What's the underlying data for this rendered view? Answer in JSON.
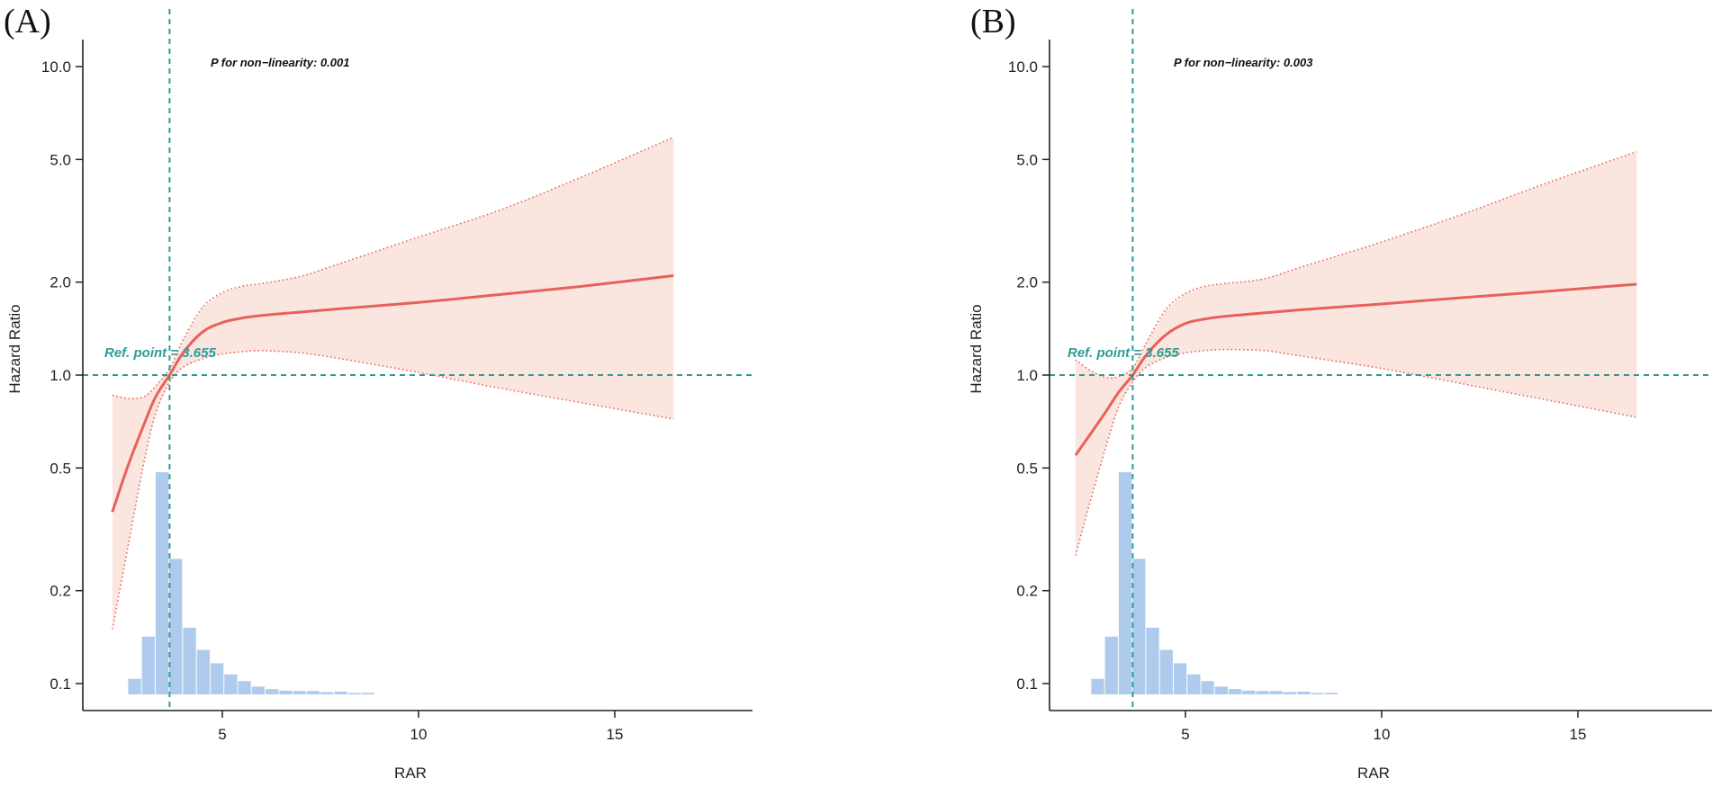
{
  "colors": {
    "curve": "#e8605c",
    "ci_fill": "#fbe3dc",
    "ci_border": "#e8605c",
    "histogram": "#aecbee",
    "reference": "#2e9c95",
    "axis": "#222222"
  },
  "chart_data": [
    {
      "type": "line",
      "panel_label": "(A)",
      "xlabel": "RAR",
      "ylabel": "Hazard Ratio",
      "y_scale": "log",
      "xlim": [
        2.0,
        18.0
      ],
      "ylim": [
        0.08,
        13.0
      ],
      "x_ticks": [
        {
          "value": 5,
          "label": "5"
        },
        {
          "value": 10,
          "label": "10"
        },
        {
          "value": 15,
          "label": "15"
        }
      ],
      "y_ticks": [
        {
          "value": 0.1,
          "label": "0.1"
        },
        {
          "value": 0.2,
          "label": "0.2"
        },
        {
          "value": 0.5,
          "label": "0.5"
        },
        {
          "value": 1.0,
          "label": "1.0"
        },
        {
          "value": 2.0,
          "label": "2.0"
        },
        {
          "value": 5.0,
          "label": "5.0"
        },
        {
          "value": 10.0,
          "label": "10.0"
        }
      ],
      "annotation": "P for non−linearity: 0.001",
      "reference_point": {
        "x": 3.655,
        "hr": 1.0,
        "label": "Ref. point = 3.655"
      },
      "series": [
        {
          "name": "Hazard ratio",
          "x": [
            2.2,
            2.6,
            3.0,
            3.3,
            3.655,
            4.0,
            4.5,
            5.0,
            5.5,
            6.0,
            7.0,
            8.0,
            10.0,
            12.0,
            14.0,
            16.5
          ],
          "values": [
            0.36,
            0.51,
            0.69,
            0.85,
            1.0,
            1.18,
            1.38,
            1.48,
            1.53,
            1.56,
            1.6,
            1.64,
            1.72,
            1.82,
            1.93,
            2.1
          ]
        },
        {
          "name": "95% CI upper",
          "x": [
            2.2,
            2.6,
            3.0,
            3.3,
            3.655,
            4.0,
            4.5,
            5.0,
            5.5,
            6.0,
            7.0,
            8.0,
            10.0,
            12.0,
            14.0,
            16.5
          ],
          "values": [
            0.86,
            0.84,
            0.85,
            0.92,
            1.05,
            1.3,
            1.66,
            1.85,
            1.94,
            1.98,
            2.09,
            2.3,
            2.8,
            3.4,
            4.3,
            5.9
          ]
        },
        {
          "name": "95% CI lower",
          "x": [
            2.2,
            2.6,
            3.0,
            3.3,
            3.655,
            4.0,
            4.5,
            5.0,
            5.5,
            6.0,
            7.0,
            8.0,
            10.0,
            12.0,
            14.0,
            16.5
          ],
          "values": [
            0.15,
            0.28,
            0.52,
            0.75,
            0.95,
            1.06,
            1.13,
            1.17,
            1.19,
            1.2,
            1.18,
            1.13,
            1.02,
            0.91,
            0.82,
            0.72
          ]
        }
      ],
      "histogram": {
        "name": "RAR distribution",
        "bin_width": 0.35,
        "bin_starts": [
          2.6,
          2.95,
          3.3,
          3.65,
          4.0,
          4.35,
          4.7,
          5.05,
          5.4,
          5.75,
          6.1,
          6.45,
          6.8,
          7.15,
          7.5,
          7.85,
          8.2,
          8.55
        ],
        "relative_heights": [
          0.07,
          0.26,
          1.0,
          0.61,
          0.3,
          0.2,
          0.14,
          0.09,
          0.06,
          0.035,
          0.024,
          0.017,
          0.015,
          0.015,
          0.01,
          0.012,
          0.005,
          0.007
        ]
      }
    },
    {
      "type": "line",
      "panel_label": "(B)",
      "xlabel": "RAR",
      "ylabel": "Hazard Ratio",
      "y_scale": "log",
      "xlim": [
        2.0,
        18.0
      ],
      "ylim": [
        0.08,
        13.0
      ],
      "x_ticks": [
        {
          "value": 5,
          "label": "5"
        },
        {
          "value": 10,
          "label": "10"
        },
        {
          "value": 15,
          "label": "15"
        }
      ],
      "y_ticks": [
        {
          "value": 0.1,
          "label": "0.1"
        },
        {
          "value": 0.2,
          "label": "0.2"
        },
        {
          "value": 0.5,
          "label": "0.5"
        },
        {
          "value": 1.0,
          "label": "1.0"
        },
        {
          "value": 2.0,
          "label": "2.0"
        },
        {
          "value": 5.0,
          "label": "5.0"
        },
        {
          "value": 10.0,
          "label": "10.0"
        }
      ],
      "annotation": "P for non−linearity: 0.003",
      "reference_point": {
        "x": 3.655,
        "hr": 1.0,
        "label": "Ref. point = 3.655"
      },
      "series": [
        {
          "name": "Hazard ratio",
          "x": [
            2.2,
            2.6,
            3.0,
            3.3,
            3.655,
            4.0,
            4.5,
            5.0,
            5.5,
            6.0,
            7.0,
            8.0,
            10.0,
            12.0,
            14.0,
            16.5
          ],
          "values": [
            0.55,
            0.65,
            0.77,
            0.88,
            1.0,
            1.16,
            1.35,
            1.47,
            1.52,
            1.55,
            1.59,
            1.63,
            1.7,
            1.78,
            1.86,
            1.97
          ]
        },
        {
          "name": "95% CI upper",
          "x": [
            2.2,
            2.6,
            3.0,
            3.3,
            3.655,
            4.0,
            4.5,
            5.0,
            5.5,
            6.0,
            7.0,
            8.0,
            10.0,
            12.0,
            14.0,
            16.5
          ],
          "values": [
            1.12,
            1.03,
            0.98,
            0.99,
            1.05,
            1.27,
            1.63,
            1.84,
            1.94,
            1.98,
            2.05,
            2.25,
            2.7,
            3.3,
            4.1,
            5.3
          ]
        },
        {
          "name": "95% CI lower",
          "x": [
            2.2,
            2.6,
            3.0,
            3.3,
            3.655,
            4.0,
            4.5,
            5.0,
            5.5,
            6.0,
            7.0,
            8.0,
            10.0,
            12.0,
            14.0,
            16.5
          ],
          "values": [
            0.26,
            0.4,
            0.6,
            0.79,
            0.95,
            1.06,
            1.14,
            1.18,
            1.2,
            1.21,
            1.2,
            1.15,
            1.05,
            0.94,
            0.84,
            0.73
          ]
        }
      ],
      "histogram": {
        "name": "RAR distribution",
        "bin_width": 0.35,
        "bin_starts": [
          2.6,
          2.95,
          3.3,
          3.65,
          4.0,
          4.35,
          4.7,
          5.05,
          5.4,
          5.75,
          6.1,
          6.45,
          6.8,
          7.15,
          7.5,
          7.85,
          8.2,
          8.55
        ],
        "relative_heights": [
          0.07,
          0.26,
          1.0,
          0.61,
          0.3,
          0.2,
          0.14,
          0.09,
          0.06,
          0.035,
          0.024,
          0.017,
          0.015,
          0.015,
          0.01,
          0.012,
          0.005,
          0.007
        ]
      }
    }
  ]
}
